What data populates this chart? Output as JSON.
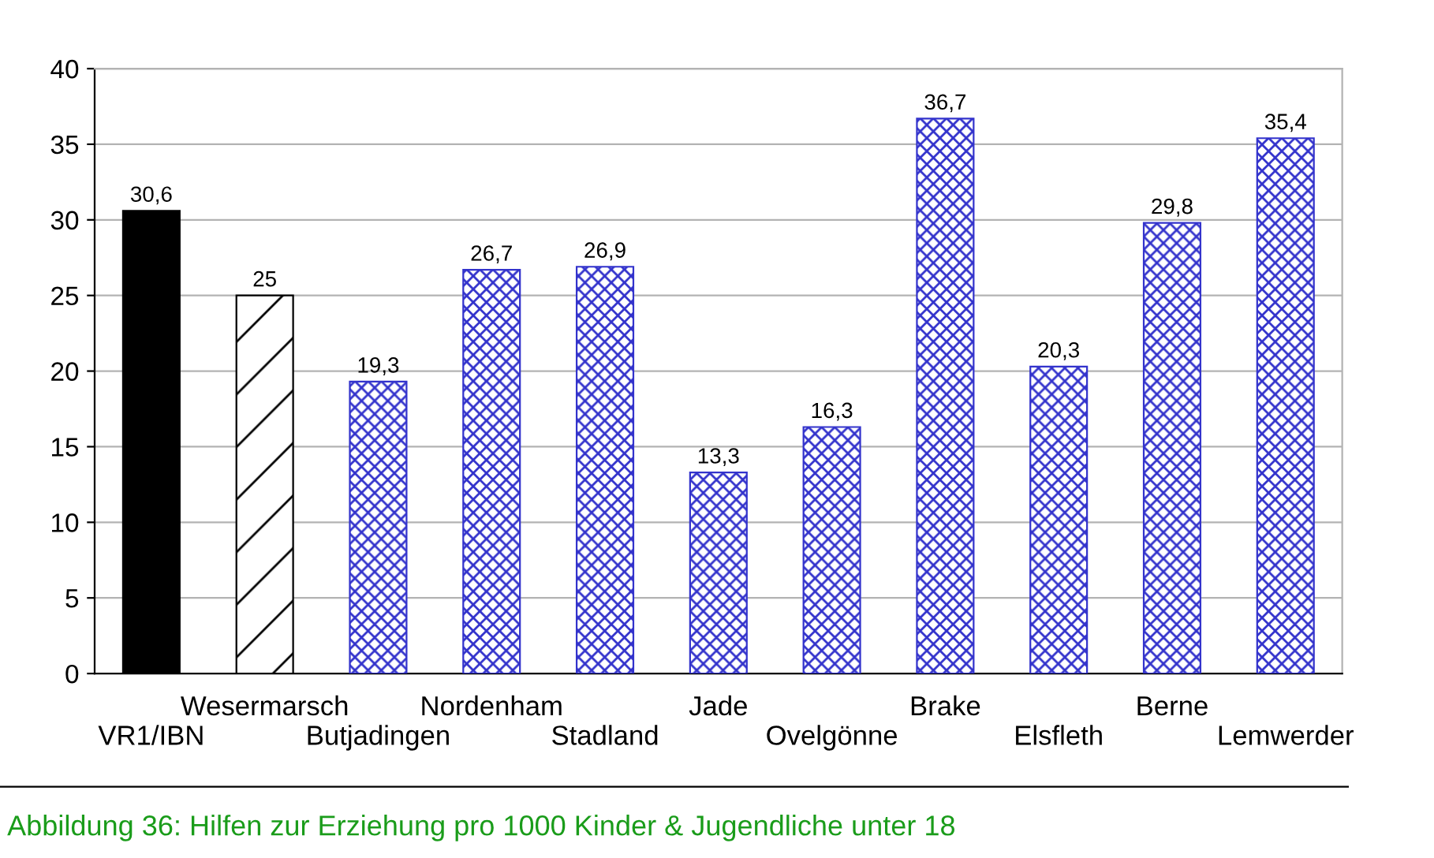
{
  "chart_data": {
    "type": "bar",
    "categories": [
      "VR1/IBN",
      "Wesermarsch",
      "Butjadingen",
      "Nordenham",
      "Stadland",
      "Jade",
      "Ovelgönne",
      "Brake",
      "Elsfleth",
      "Berne",
      "Lemwerder"
    ],
    "values": [
      30.6,
      25,
      19.3,
      26.7,
      26.9,
      13.3,
      16.3,
      36.7,
      20.3,
      29.8,
      35.4
    ],
    "value_labels": [
      "30,6",
      "25",
      "19,3",
      "26,7",
      "26,9",
      "13,3",
      "16,3",
      "36,7",
      "20,3",
      "29,8",
      "35,4"
    ],
    "colors": [
      "#000000",
      "#ffffff",
      "#3333cc",
      "#3333cc",
      "#3333cc",
      "#3333cc",
      "#3333cc",
      "#3333cc",
      "#3333cc",
      "#3333cc",
      "#3333cc"
    ],
    "ylim": [
      0,
      40
    ],
    "yticks": [
      0,
      5,
      10,
      15,
      20,
      25,
      30,
      35,
      40
    ],
    "grid": "y",
    "annotations": [
      "Abbildung 36: Hilfen zur Erziehung pro 1000 Kinder & Jugendliche unter 18"
    ]
  }
}
